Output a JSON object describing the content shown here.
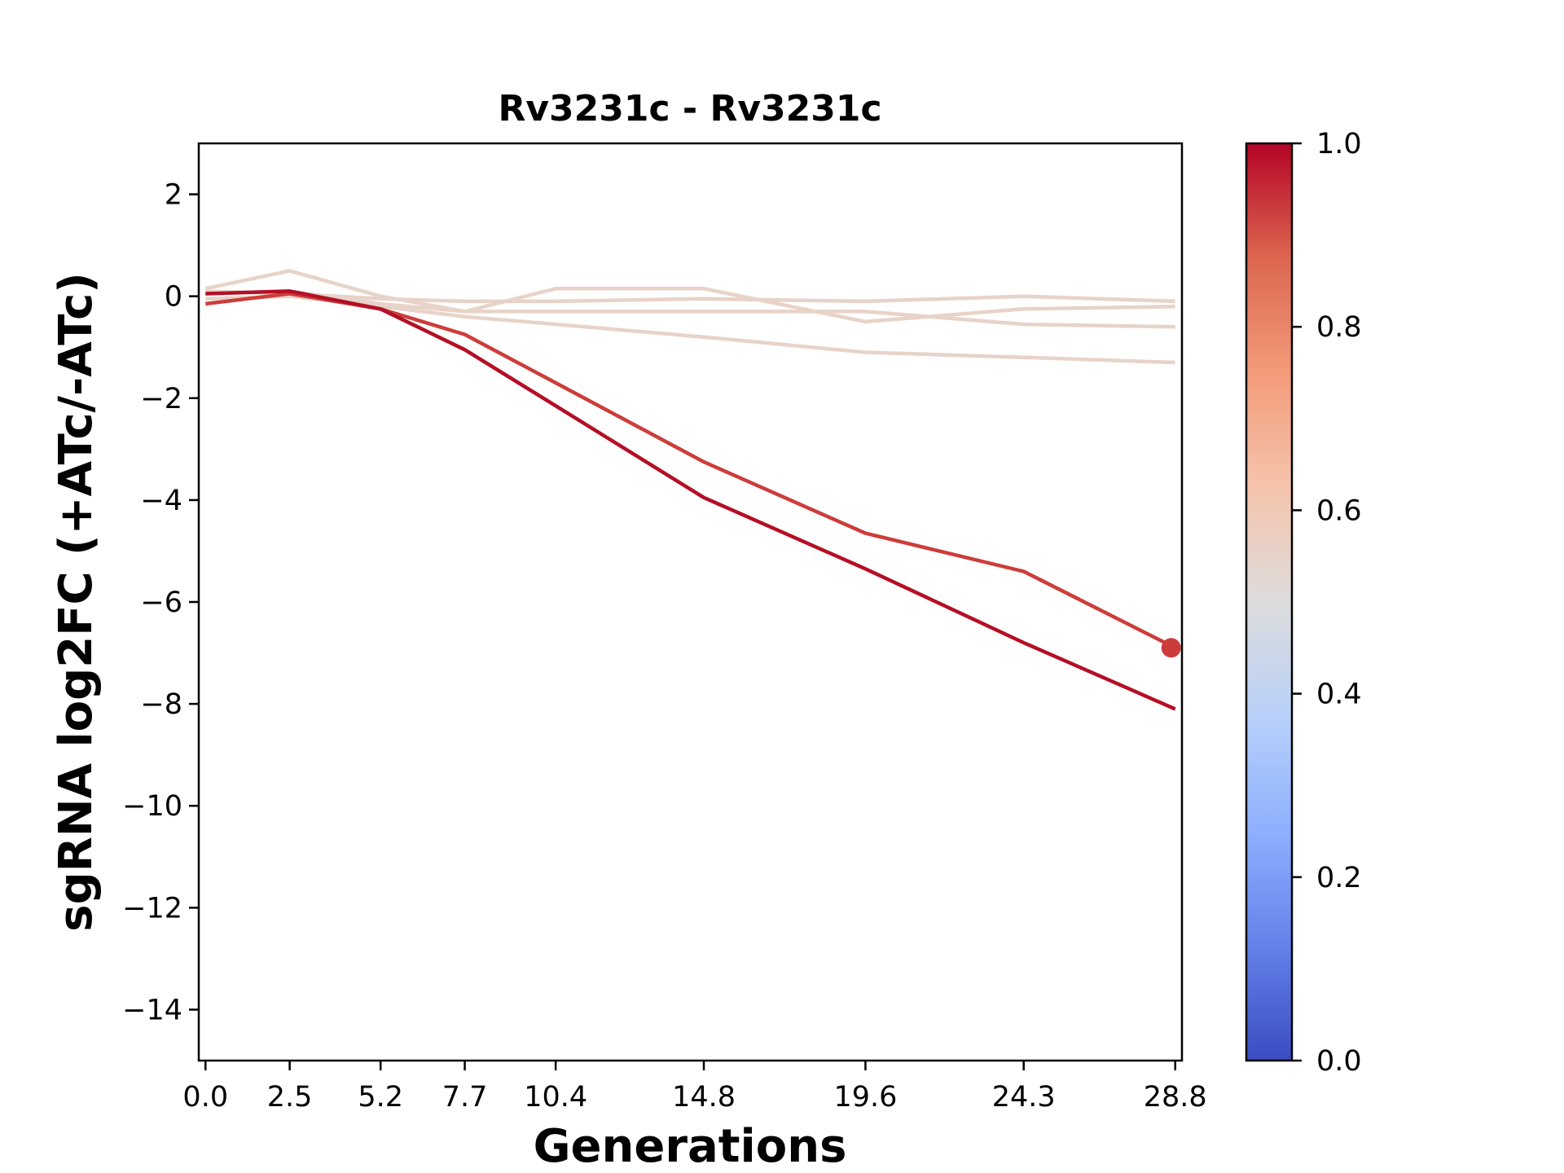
{
  "chart_data": {
    "type": "line",
    "title": "Rv3231c - Rv3231c",
    "xlabel": "Generations",
    "ylabel": "sgRNA log2FC (+ATc/-ATc)",
    "x": [
      0.0,
      2.5,
      5.2,
      7.7,
      10.4,
      14.8,
      19.6,
      24.3,
      28.8
    ],
    "x_tick_labels": [
      "0.0",
      "2.5",
      "5.2",
      "7.7",
      "10.4",
      "14.8",
      "19.6",
      "24.3",
      "28.8"
    ],
    "ylim": [
      -15,
      3
    ],
    "y_ticks": [
      2,
      0,
      -2,
      -4,
      -6,
      -8,
      -10,
      -12,
      -14
    ],
    "y_tick_labels": [
      "2",
      "0",
      "−2",
      "−4",
      "−6",
      "−8",
      "−10",
      "−12",
      "−14"
    ],
    "grid": false,
    "series": [
      {
        "color_value": 0.58,
        "color": "#e8d3c8",
        "values": [
          0.15,
          0.5,
          0.0,
          -0.3,
          0.15,
          0.15,
          -0.5,
          -0.25,
          -0.2
        ]
      },
      {
        "color_value": 0.58,
        "color": "#e8d3c8",
        "values": [
          0.1,
          0.05,
          -0.05,
          -0.1,
          -0.1,
          -0.05,
          -0.1,
          0.0,
          -0.1
        ]
      },
      {
        "color_value": 0.58,
        "color": "#e8d3c8",
        "values": [
          0.05,
          0.1,
          -0.15,
          -0.3,
          -0.3,
          -0.3,
          -0.3,
          -0.55,
          -0.6
        ]
      },
      {
        "color_value": 0.58,
        "color": "#e8d3c8",
        "values": [
          -0.05,
          0.0,
          -0.2,
          -0.4,
          -0.55,
          -0.8,
          -1.1,
          -1.2,
          -1.3
        ]
      },
      {
        "color_value": 0.92,
        "color": "#cc3d3a",
        "values": [
          -0.15,
          0.05,
          -0.25,
          -0.75,
          -1.7,
          -3.25,
          -4.65,
          -5.4,
          -6.9
        ]
      },
      {
        "color_value": 1.0,
        "color": "#b40f26",
        "values": [
          0.05,
          0.1,
          -0.25,
          -1.05,
          -2.15,
          -3.95,
          -5.35,
          -6.8,
          -8.1
        ]
      }
    ],
    "markers": [
      {
        "series_index": 4,
        "x": 28.8,
        "y": -6.9,
        "color": "#cc3d3a"
      }
    ],
    "colorbar": {
      "colormap": "coolwarm",
      "range": [
        0.0,
        1.0
      ],
      "ticks": [
        0.0,
        0.2,
        0.4,
        0.6,
        0.8,
        1.0
      ],
      "tick_labels": [
        "0.0",
        "0.2",
        "0.4",
        "0.6",
        "0.8",
        "1.0"
      ],
      "stops": [
        "#3b4cc0",
        "#6282ea",
        "#8db0fe",
        "#b8d0f9",
        "#dddcdc",
        "#f5c4ac",
        "#f39b7a",
        "#dc6650",
        "#b40426"
      ]
    }
  }
}
